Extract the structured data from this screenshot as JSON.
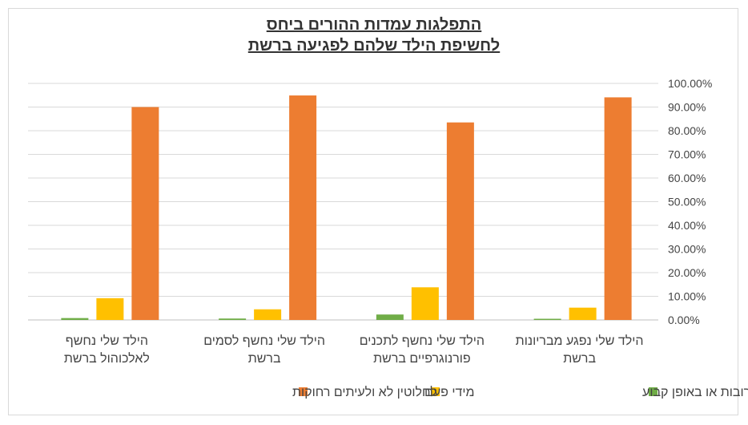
{
  "chart_data": {
    "type": "bar",
    "title_lines": [
      "התפלגות עמדות ההורים ביחס",
      "לחשיפת הילד שלהם לפגיעה ברשת"
    ],
    "categories": [
      [
        "הילד שלי נפגע מבריונות",
        "ברשת"
      ],
      [
        "הילד שלי נחשף לתכנים",
        "פורנוגרפיים ברשת"
      ],
      [
        "הילד שלי נחשף לסמים",
        "ברשת"
      ],
      [
        "הילד שלי נחשף",
        "לאלכוהול ברשת"
      ]
    ],
    "series": [
      {
        "name": "לעיתים קרובות או באופן קבוע",
        "color": "#70ad47",
        "values": [
          0.5,
          2.3,
          0.6,
          0.8
        ]
      },
      {
        "name": "מידי פעם",
        "color": "#ffc000",
        "values": [
          5.2,
          13.8,
          4.5,
          9.2
        ]
      },
      {
        "name": "לחלוטין לא ולעיתים רחוקות",
        "color": "#ed7d31",
        "values": [
          94.1,
          83.5,
          94.9,
          90.0
        ]
      }
    ],
    "yticks": [
      "0.00%",
      "10.00%",
      "20.00%",
      "30.00%",
      "40.00%",
      "50.00%",
      "60.00%",
      "70.00%",
      "80.00%",
      "90.00%",
      "100.00%"
    ],
    "ylim": [
      0,
      100
    ],
    "grid": true,
    "legend_position": "bottom",
    "y_axis_side": "right"
  }
}
